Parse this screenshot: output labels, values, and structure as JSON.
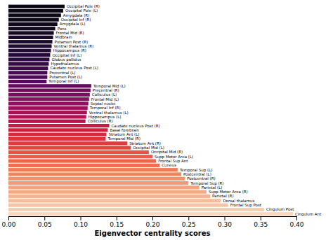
{
  "chart_data": {
    "type": "bar",
    "orientation": "horizontal",
    "categories": [
      "Occipital Pole (R)",
      "Occipital Pole (L)",
      "Amygdala (R)",
      "Occipital Inf (R)",
      "Amygdala (L)",
      "Pons",
      "Frontal Mid (R)",
      "Midbrain",
      "Putamen Post (R)",
      "Ventral thalamus (R)",
      "Hippocampus (R)",
      "Occipital Inf (L)",
      "Globus pallidus",
      "Hypothalamus",
      "Caudate nucleus Post (L)",
      "Precentral (L)",
      "Putamen Post (L)",
      "Temporal Inf (L)",
      "Temporal Mid (L)",
      "Precentral (R)",
      "Colliculus (L)",
      "Frontal Mid (L)",
      "Septal nuclei",
      "Temporal Inf (R)",
      "Ventral thalamus (L)",
      "Hippocampus (L)",
      "Colliculus (R)",
      "Caudate nucleus Post (R)",
      "Basal forebrain",
      "Striatum Ant (L)",
      "Temporal Mid (R)",
      "Striatum Ant (R)",
      "Occipital Mid (L)",
      "Occipital Mid (R)",
      "Supp Motor Area (L)",
      "Frontal Sup Ant",
      "Cuneus",
      "Temporal Sup (L)",
      "Postcentral (L)",
      "Postcentral (R)",
      "Temporal Sup (R)",
      "Parietal (L)",
      "Supp Motor Area (R)",
      "Parietal (R)",
      "Dorsal thalamus",
      "Frontal Sup Post",
      "Cingulum Post",
      "Cingulum Ant"
    ],
    "values": [
      0.078,
      0.076,
      0.073,
      0.07,
      0.068,
      0.065,
      0.063,
      0.062,
      0.061,
      0.06,
      0.059,
      0.058,
      0.057,
      0.056,
      0.055,
      0.054,
      0.054,
      0.053,
      0.115,
      0.114,
      0.113,
      0.112,
      0.111,
      0.11,
      0.109,
      0.108,
      0.107,
      0.14,
      0.138,
      0.136,
      0.135,
      0.165,
      0.17,
      0.195,
      0.2,
      0.205,
      0.21,
      0.235,
      0.24,
      0.245,
      0.25,
      0.265,
      0.275,
      0.28,
      0.295,
      0.305,
      0.355,
      0.395
    ],
    "colors": [
      "#0a0812",
      "#0b0814",
      "#0d0817",
      "#0f0919",
      "#10091c",
      "#120a1f",
      "#150a23",
      "#180a28",
      "#1b0a2c",
      "#1e0a31",
      "#210a35",
      "#270a3a",
      "#2f0a40",
      "#360a46",
      "#3d0a4b",
      "#450a51",
      "#4c0a57",
      "#570a5b",
      "#630b5d",
      "#700c5f",
      "#7d0d61",
      "#8a0e63",
      "#940f60",
      "#9d105c",
      "#a71257",
      "#b01353",
      "#ba144e",
      "#c51b46",
      "#cf213d",
      "#d62a3c",
      "#db323c",
      "#e03b3c",
      "#e4463f",
      "#e85143",
      "#eb5b46",
      "#ed664c",
      "#ee7051",
      "#f07b58",
      "#f08660",
      "#f19069",
      "#f29a73",
      "#f3a37e",
      "#f3ac88",
      "#f4b493",
      "#f5bd9e",
      "#f6c5a8",
      "#f8ceb3",
      "#fad7be"
    ],
    "xlabel": "Eigenvector centrality scores",
    "xlim": [
      0.0,
      0.4
    ],
    "xticks": [
      {
        "value": 0.0,
        "label": "0.00"
      },
      0.05,
      {
        "value": 0.1,
        "label": "0.10"
      },
      0.15,
      {
        "value": 0.2,
        "label": "0.20"
      },
      0.25,
      {
        "value": 0.3,
        "label": "0.30"
      },
      0.35,
      {
        "value": 0.4,
        "label": "0.40"
      }
    ],
    "tick_labels": "x",
    "grid": false
  }
}
